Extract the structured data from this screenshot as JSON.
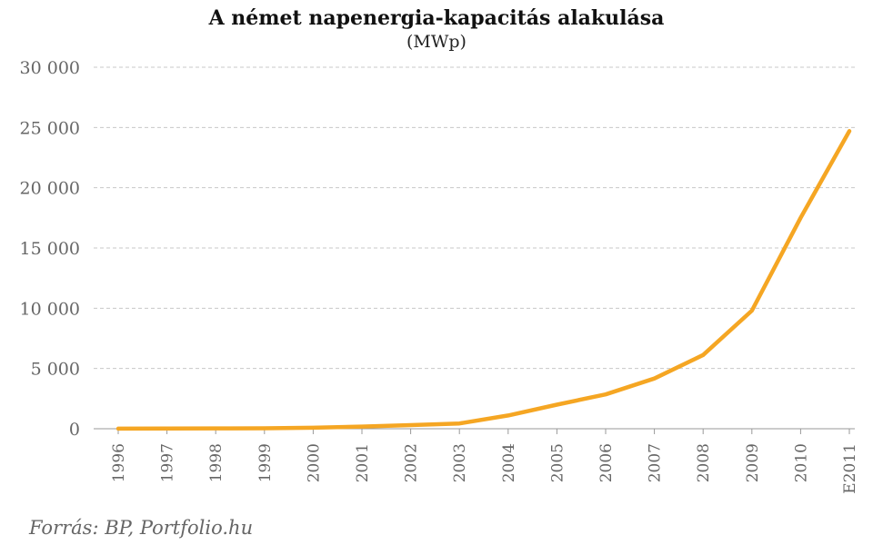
{
  "chart_data": {
    "type": "line",
    "title": "A német napenergia-kapacitás alakulása",
    "subtitle": "(MWp)",
    "categories": [
      "1996",
      "1997",
      "1998",
      "1999",
      "2000",
      "2001",
      "2002",
      "2003",
      "2004",
      "2005",
      "2006",
      "2007",
      "2008",
      "2009",
      "2010",
      "E2011"
    ],
    "series": [
      {
        "values": [
          10,
          20,
          30,
          40,
          80,
          180,
          300,
          440,
          1100,
          2000,
          2850,
          4170,
          6120,
          9800,
          17500,
          24700
        ]
      }
    ],
    "ylim": [
      0,
      30000
    ],
    "yticks": [
      0,
      5000,
      10000,
      15000,
      20000,
      25000,
      30000
    ],
    "ytick_labels": [
      "0",
      "5 000",
      "10 000",
      "15 000",
      "20 000",
      "25 000",
      "30 000"
    ],
    "xlabel": "",
    "ylabel": "",
    "grid": true,
    "line_color": "#f5a623",
    "source": "Forrás: BP, Portfolio.hu"
  }
}
